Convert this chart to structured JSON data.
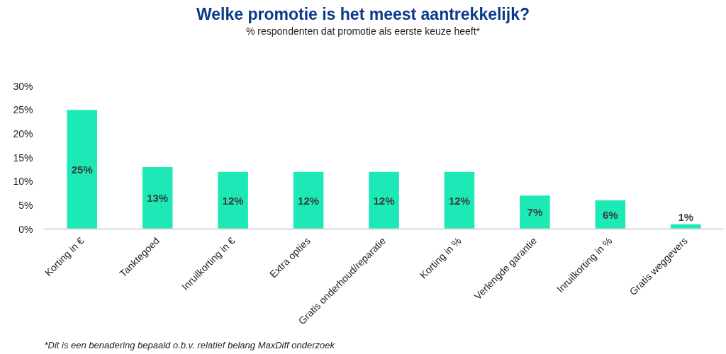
{
  "chart_data": {
    "type": "bar",
    "title": "Welke promotie is het meest aantrekkelijk?",
    "subtitle": "% respondenten dat promotie als eerste keuze heeft*",
    "categories": [
      "Korting in €",
      "Tanktegoed",
      "Inruilkorting in €",
      "Extra opties",
      "Gratis onderhoud/reparatie",
      "Korting in %",
      "Verlengde garantie",
      "Inruilkorting in %",
      "Gratis weggevers"
    ],
    "values": [
      25,
      13,
      12,
      12,
      12,
      12,
      7,
      6,
      1
    ],
    "value_labels": [
      "25%",
      "13%",
      "12%",
      "12%",
      "12%",
      "12%",
      "7%",
      "6%",
      "1%"
    ],
    "color": "#1de9b6",
    "ylim": [
      0,
      30
    ],
    "yticks": [
      {
        "value": 0,
        "label": "0%"
      },
      {
        "value": 5,
        "label": "5%"
      },
      {
        "value": 10,
        "label": "10%"
      },
      {
        "value": 15,
        "label": "15%"
      },
      {
        "value": 20,
        "label": "20%"
      },
      {
        "value": 25,
        "label": "25%"
      },
      {
        "value": 30,
        "label": "30%"
      }
    ],
    "annotations": [
      "*Dit is een benadering bepaald o.b.v. relatief belang MaxDiff onderzoek"
    ]
  }
}
